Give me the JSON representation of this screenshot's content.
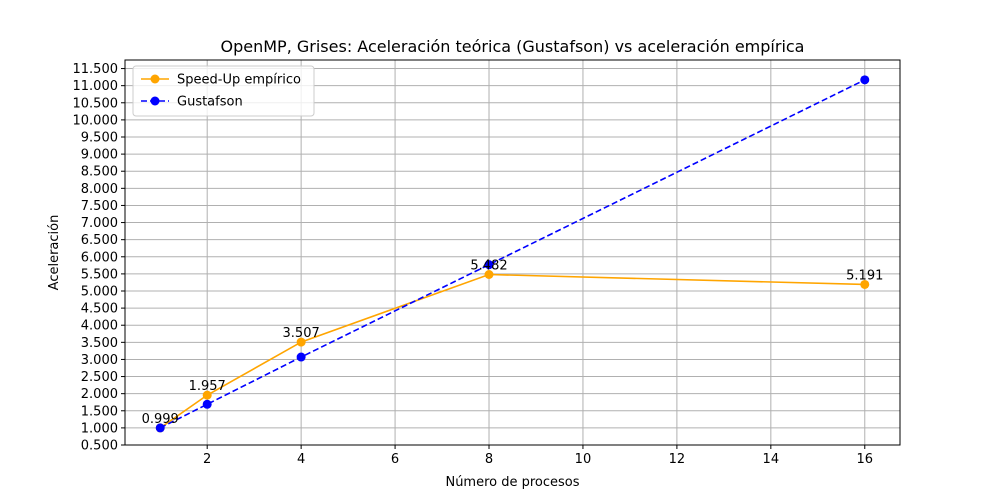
{
  "chart_data": {
    "type": "line",
    "title": "OpenMP, Grises: Aceleración teórica (Gustafson) vs aceleración empírica",
    "xlabel": "Número de procesos",
    "ylabel": "Aceleración",
    "xlim": [
      0.25,
      16.75
    ],
    "ylim": [
      0.5,
      11.75
    ],
    "xticks": [
      2,
      4,
      6,
      8,
      10,
      12,
      14,
      16
    ],
    "xtick_labels": [
      "2",
      "4",
      "6",
      "8",
      "10",
      "12",
      "14",
      "16"
    ],
    "yticks": [
      0.5,
      1,
      1.5,
      2,
      2.5,
      3,
      3.5,
      4,
      4.5,
      5,
      5.5,
      6,
      6.5,
      7,
      7.5,
      8,
      8.5,
      9,
      9.5,
      10,
      10.5,
      11,
      11.5
    ],
    "ytick_labels": [
      "0.500",
      "1.000",
      "1.500",
      "2.000",
      "2.500",
      "3.000",
      "3.500",
      "4.000",
      "4.500",
      "5.000",
      "5.500",
      "6.000",
      "6.500",
      "7.000",
      "7.500",
      "8.000",
      "8.500",
      "9.000",
      "9.500",
      "10.000",
      "10.500",
      "11.000",
      "11.500"
    ],
    "grid": true,
    "legend_position": "top-left",
    "series": [
      {
        "name": "Speed-Up empírico",
        "color": "#ffa500",
        "linestyle": "solid",
        "marker": "circle",
        "x": [
          1,
          2,
          4,
          8,
          16
        ],
        "y": [
          0.999,
          1.957,
          3.507,
          5.482,
          5.191
        ],
        "labels": [
          "0.999",
          "1.957",
          "3.507",
          "5.482",
          "5.191"
        ]
      },
      {
        "name": "Gustafson",
        "color": "#0000ff",
        "linestyle": "dashed",
        "marker": "circle",
        "x": [
          1,
          2,
          4,
          8,
          16
        ],
        "y": [
          1.0,
          1.69,
          3.07,
          5.77,
          11.17
        ]
      }
    ]
  }
}
